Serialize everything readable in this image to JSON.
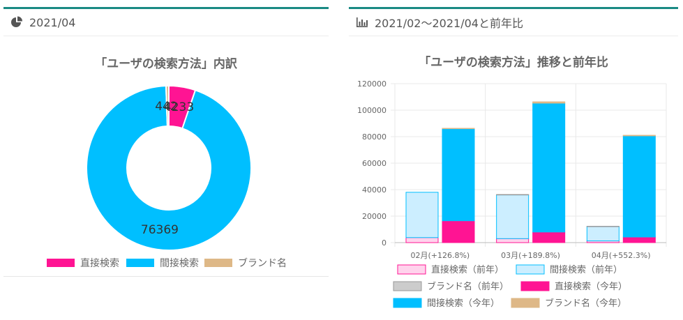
{
  "left_panel": {
    "header": "2021/04",
    "icon": "pie-chart-icon"
  },
  "right_panel": {
    "header": "2021/02〜2021/04と前年比",
    "icon": "bar-chart-icon"
  },
  "chart_data": [
    {
      "type": "pie",
      "title": "「ユーザの検索方法」内訳",
      "labels": [
        "直接検索",
        "間接検索",
        "ブランド名"
      ],
      "values": [
        4233,
        76369,
        442
      ],
      "data_labels": [
        "4233",
        "76369",
        "442"
      ],
      "colors": [
        "#ff1493",
        "#00bfff",
        "#deb887"
      ],
      "legend_position": "bottom"
    },
    {
      "type": "bar",
      "title": "「ユーザの検索方法」推移と前年比",
      "categories": [
        "02月(+126.8%)",
        "03月(+189.8%)",
        "04月(+552.3%)"
      ],
      "ylim": [
        0,
        120000
      ],
      "yticks": [
        "0",
        "20000",
        "40000",
        "60000",
        "80000",
        "100000",
        "120000"
      ],
      "grid": true,
      "legend_position": "bottom",
      "stacks": [
        {
          "stack": "prev",
          "series": [
            {
              "name": "直接検索（前年）",
              "values": [
                3800,
                3000,
                1300
              ],
              "color": "#ffd3ec",
              "border": "#ff1493"
            },
            {
              "name": "間接検索（前年）",
              "values": [
                34200,
                33000,
                10900
              ],
              "color": "#cceeff",
              "border": "#00bfff"
            },
            {
              "name": "ブランド名（前年）",
              "values": [
                0,
                300,
                100
              ],
              "color": "#cccccc",
              "border": "#999999"
            }
          ]
        },
        {
          "stack": "curr",
          "series": [
            {
              "name": "直接検索（今年）",
              "values": [
                16500,
                8000,
                4233
              ],
              "color": "#ff1493",
              "border": "#ff1493"
            },
            {
              "name": "間接検索（今年）",
              "values": [
                69500,
                97300,
                76369
              ],
              "color": "#00bfff",
              "border": "#00bfff"
            },
            {
              "name": "ブランド名（今年）",
              "values": [
                300,
                1000,
                442
              ],
              "color": "#deb887",
              "border": "#deb887"
            }
          ]
        }
      ]
    }
  ]
}
